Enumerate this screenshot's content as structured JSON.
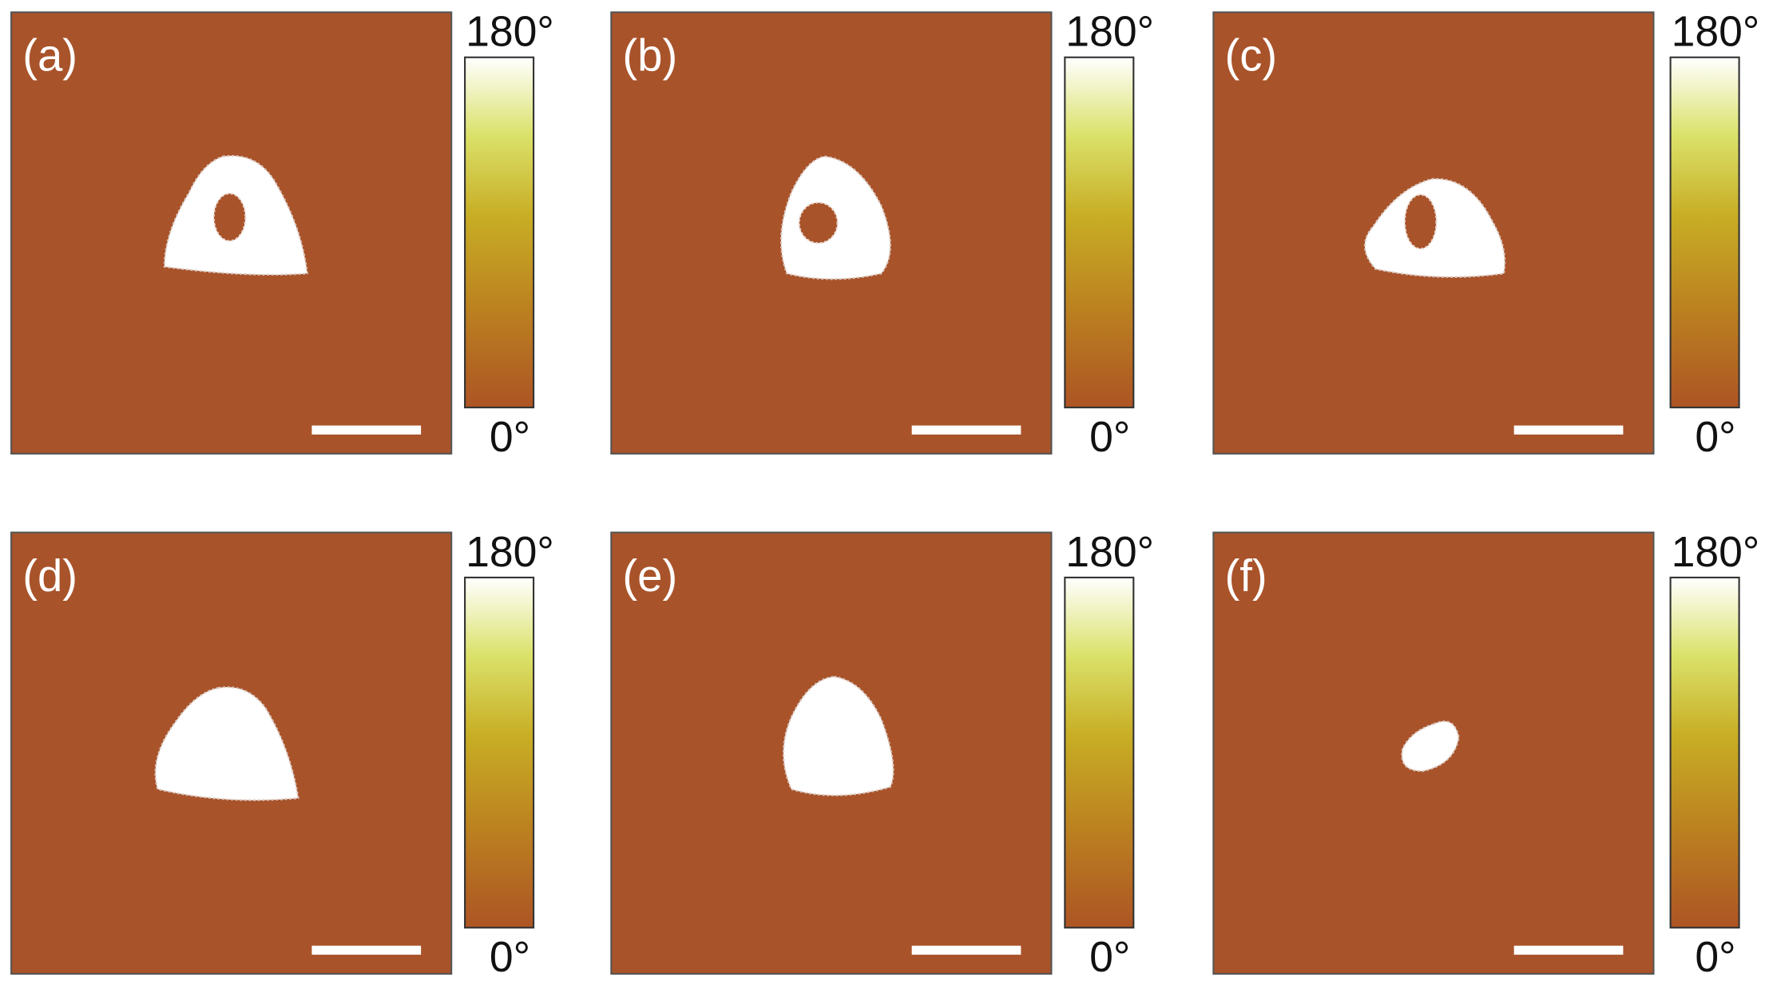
{
  "panels": [
    {
      "label": "(a)",
      "colorbar_max": "180°",
      "colorbar_min": "0°"
    },
    {
      "label": "(b)",
      "colorbar_max": "180°",
      "colorbar_min": "0°"
    },
    {
      "label": "(c)",
      "colorbar_max": "180°",
      "colorbar_min": "0°"
    },
    {
      "label": "(d)",
      "colorbar_max": "180°",
      "colorbar_min": "0°"
    },
    {
      "label": "(e)",
      "colorbar_max": "180°",
      "colorbar_min": "0°"
    },
    {
      "label": "(f)",
      "colorbar_max": "180°",
      "colorbar_min": "0°"
    }
  ]
}
